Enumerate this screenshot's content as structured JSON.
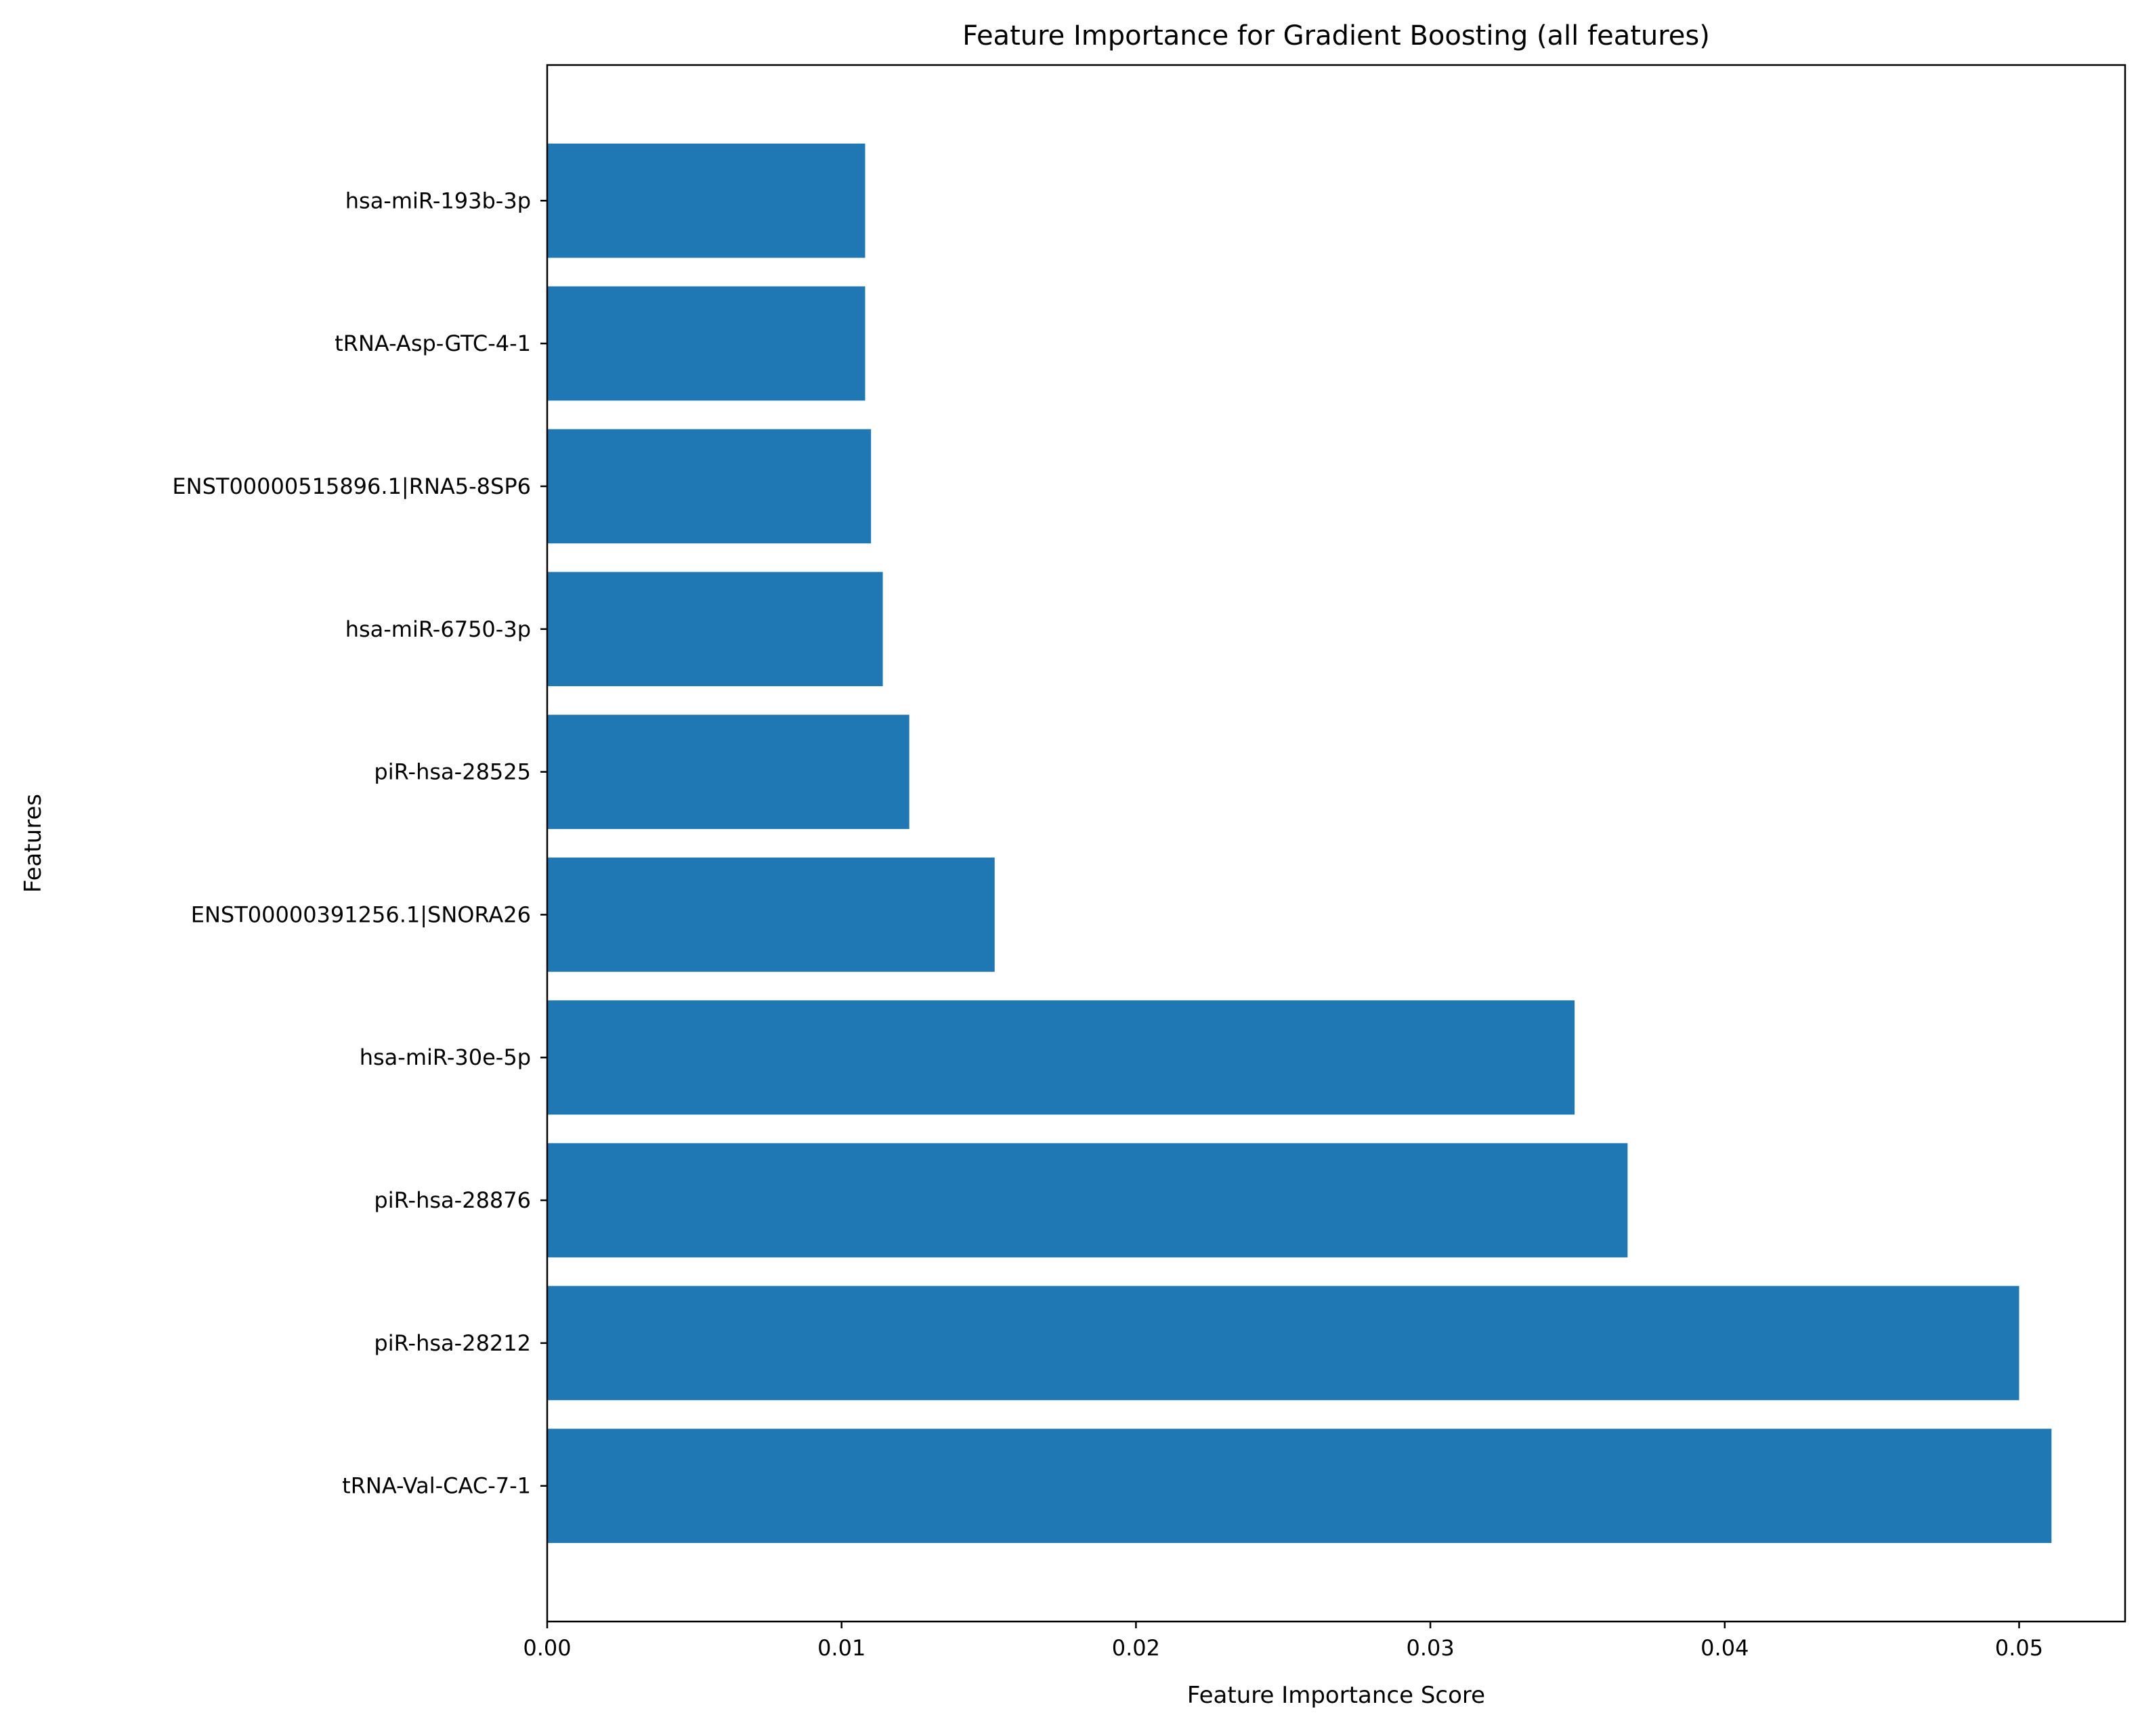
{
  "chart_data": {
    "type": "bar",
    "orientation": "horizontal",
    "title": "Feature Importance for Gradient Boosting (all features)",
    "xlabel": "Feature Importance Score",
    "ylabel": "Features",
    "xlim": [
      0,
      0.0536
    ],
    "xticks": [
      "0.00",
      "0.01",
      "0.02",
      "0.03",
      "0.04",
      "0.05"
    ],
    "xtick_values": [
      0,
      0.01,
      0.02,
      0.03,
      0.04,
      0.05
    ],
    "grid": false,
    "bar_color": "#1f77b4",
    "categories": [
      "tRNA-Val-CAC-7-1",
      "piR-hsa-28212",
      "piR-hsa-28876",
      "hsa-miR-30e-5p",
      "ENST00000391256.1|SNORA26",
      "piR-hsa-28525",
      "hsa-miR-6750-3p",
      "ENST00000515896.1|RNA5-8SP6",
      "tRNA-Asp-GTC-4-1",
      "hsa-miR-193b-3p"
    ],
    "values": [
      0.0511,
      0.05,
      0.0367,
      0.0349,
      0.0152,
      0.0123,
      0.0114,
      0.011,
      0.0108,
      0.0108
    ]
  }
}
